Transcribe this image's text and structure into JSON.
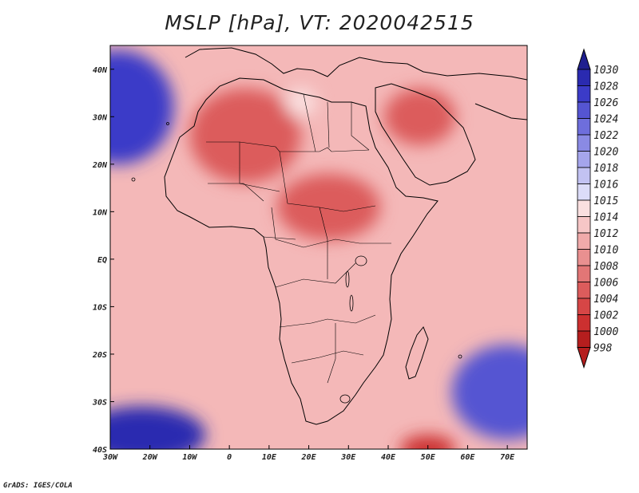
{
  "title": "MSLP [hPa], VT: 2020042515",
  "credit": "GrADS: IGES/COLA",
  "map": {
    "lon_range": [
      -30,
      75
    ],
    "lat_range": [
      -40,
      45
    ],
    "lon_ticks": [
      {
        "value": -30,
        "label": "30W"
      },
      {
        "value": -20,
        "label": "20W"
      },
      {
        "value": -10,
        "label": "10W"
      },
      {
        "value": 0,
        "label": "0"
      },
      {
        "value": 10,
        "label": "10E"
      },
      {
        "value": 20,
        "label": "20E"
      },
      {
        "value": 30,
        "label": "30E"
      },
      {
        "value": 40,
        "label": "40E"
      },
      {
        "value": 50,
        "label": "50E"
      },
      {
        "value": 60,
        "label": "60E"
      },
      {
        "value": 70,
        "label": "70E"
      }
    ],
    "lat_ticks": [
      {
        "value": -40,
        "label": "40S"
      },
      {
        "value": -30,
        "label": "30S"
      },
      {
        "value": -20,
        "label": "20S"
      },
      {
        "value": -10,
        "label": "10S"
      },
      {
        "value": 0,
        "label": "EQ"
      },
      {
        "value": 10,
        "label": "10N"
      },
      {
        "value": 20,
        "label": "20N"
      },
      {
        "value": 30,
        "label": "30N"
      },
      {
        "value": 40,
        "label": "40N"
      }
    ],
    "pressure_centers": [
      {
        "name": "azores-high",
        "lon": -28,
        "lat": 32,
        "value": 1027,
        "rx": 14,
        "ry": 12
      },
      {
        "name": "south-atlantic-high",
        "lon": -22,
        "lat": -37,
        "value": 1029,
        "rx": 16,
        "ry": 6
      },
      {
        "name": "south-indian-high",
        "lon": 70,
        "lat": -28,
        "value": 1024,
        "rx": 14,
        "ry": 10
      },
      {
        "name": "north-africa-low",
        "lon": 4,
        "lat": 26,
        "value": 1005,
        "rx": 14,
        "ry": 10
      },
      {
        "name": "central-africa-low",
        "lon": 25,
        "lat": 11,
        "value": 1004,
        "rx": 13,
        "ry": 7
      },
      {
        "name": "arabia-low",
        "lon": 48,
        "lat": 30,
        "value": 1004,
        "rx": 9,
        "ry": 6
      },
      {
        "name": "southern-low",
        "lon": 50,
        "lat": -40,
        "value": 1000,
        "rx": 7,
        "ry": 3
      },
      {
        "name": "libya-high",
        "lon": 18,
        "lat": 33,
        "value": 1014,
        "rx": 4,
        "ry": 3
      }
    ]
  },
  "colorbar": {
    "levels": [
      "1030",
      "1028",
      "1026",
      "1024",
      "1022",
      "1020",
      "1018",
      "1016",
      "1015",
      "1014",
      "1012",
      "1010",
      "1008",
      "1006",
      "1004",
      "1002",
      "1000",
      "998"
    ],
    "colors": [
      "#1f1f8f",
      "#2a2ab0",
      "#3b3bc8",
      "#5555d2",
      "#6e6edc",
      "#8a8ae4",
      "#a5a5ec",
      "#c2c2f2",
      "#dcdcf8",
      "#fae0e0",
      "#f6c6c6",
      "#f0aaaa",
      "#e99090",
      "#e27676",
      "#dc5c5c",
      "#d64646",
      "#cc3030",
      "#b51e1e"
    ]
  }
}
